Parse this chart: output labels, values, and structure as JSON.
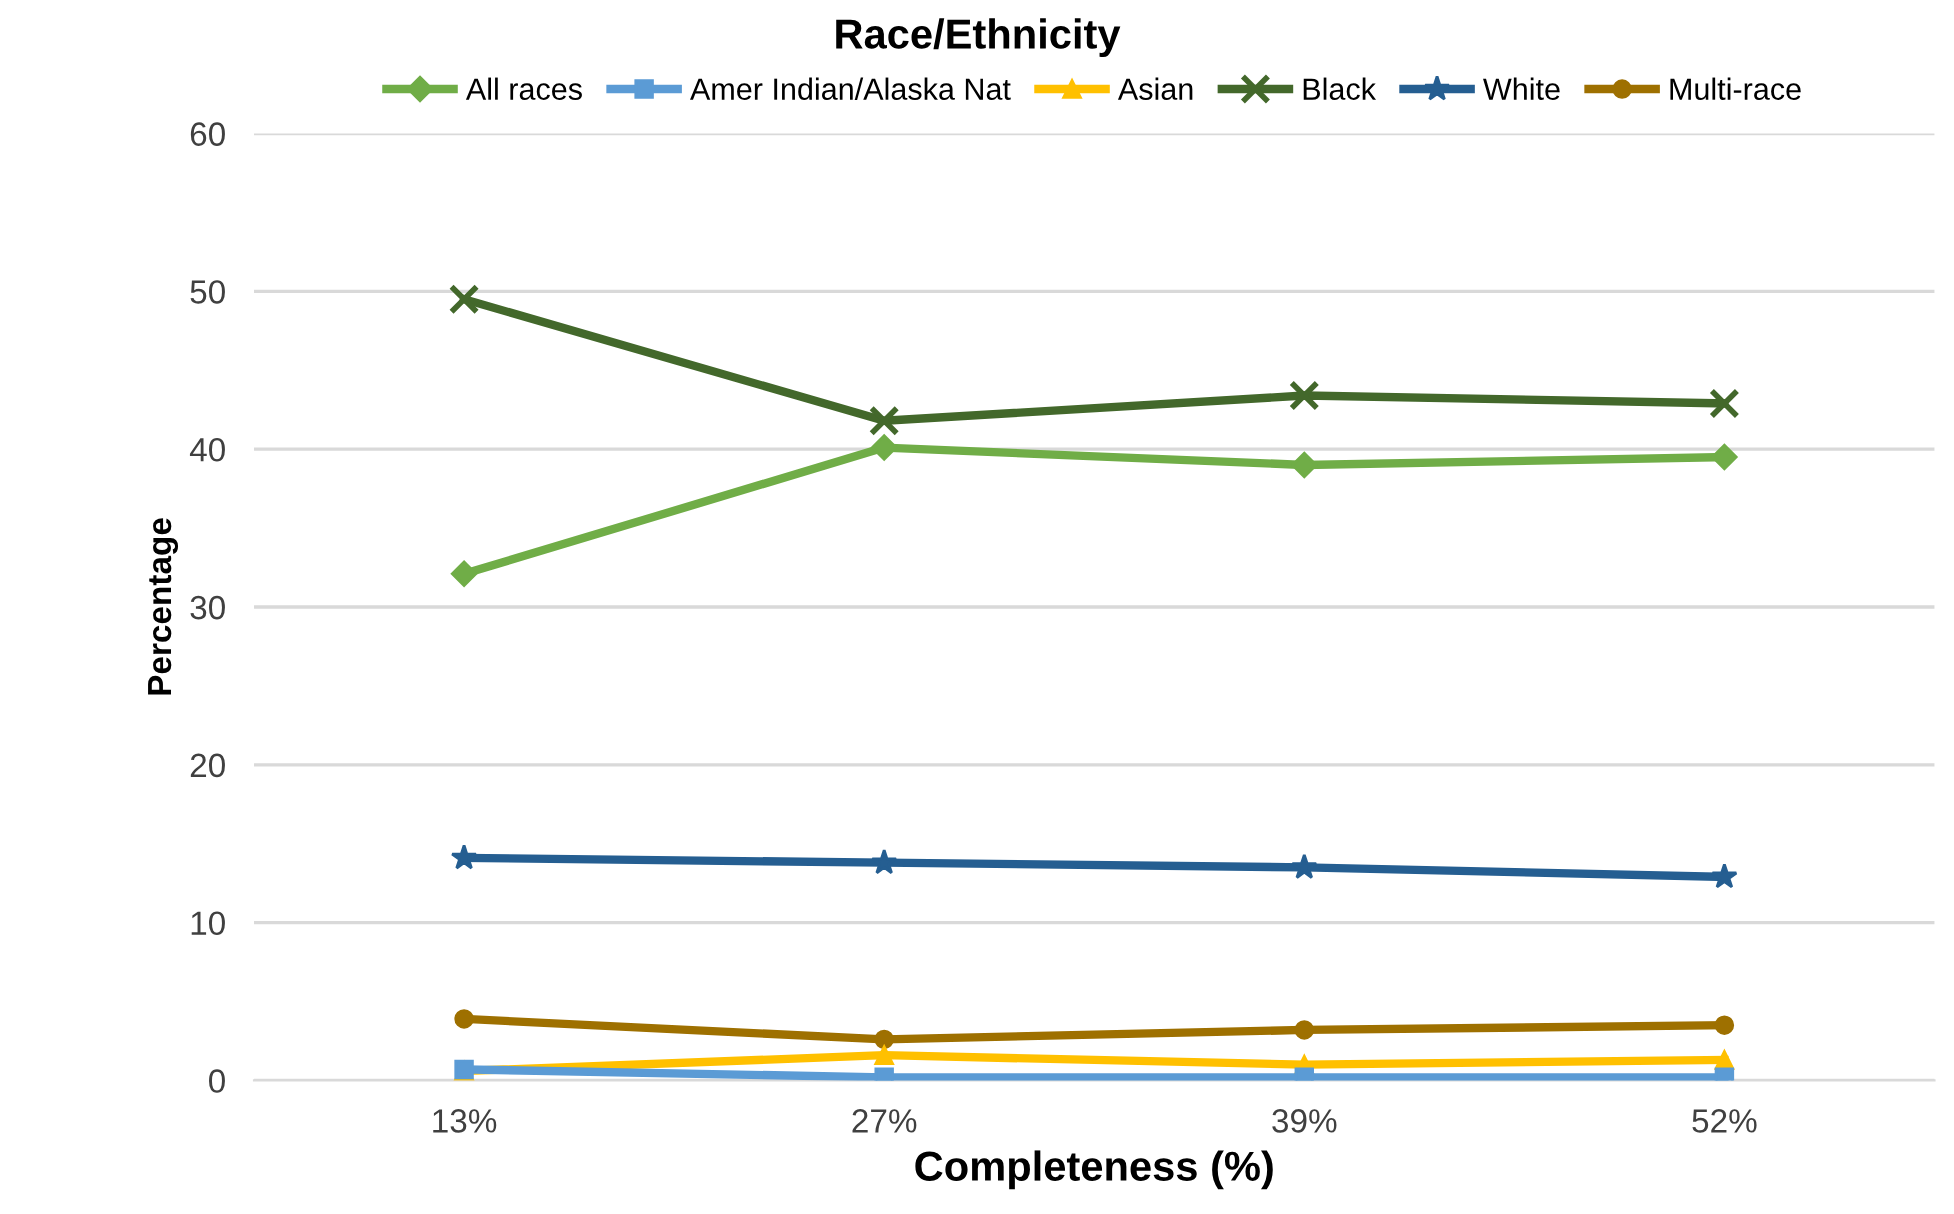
{
  "chart_data": {
    "type": "line",
    "title": "Race/Ethnicity",
    "xlabel": "Completeness (%)",
    "ylabel": "Percentage",
    "categories": [
      "13%",
      "27%",
      "39%",
      "52%"
    ],
    "series": [
      {
        "name": "All races",
        "color": "#70ad47",
        "marker": "diamond",
        "values": [
          32.1,
          40.1,
          39.0,
          39.5
        ]
      },
      {
        "name": "Amer Indian/Alaska Nat",
        "color": "#5b9bd5",
        "marker": "square",
        "values": [
          0.7,
          0.2,
          0.2,
          0.2
        ]
      },
      {
        "name": "Asian",
        "color": "#ffc000",
        "marker": "triangle",
        "values": [
          0.6,
          1.6,
          1.0,
          1.3
        ]
      },
      {
        "name": "Black",
        "color": "#43682b",
        "marker": "cross",
        "values": [
          49.5,
          41.8,
          43.4,
          42.9
        ]
      },
      {
        "name": "White",
        "color": "#255e91",
        "marker": "star",
        "values": [
          14.1,
          13.8,
          13.5,
          12.9
        ]
      },
      {
        "name": "Multi-race",
        "color": "#9e7000",
        "marker": "circle",
        "values": [
          3.9,
          2.6,
          3.2,
          3.5
        ]
      }
    ],
    "ylim": [
      0,
      60
    ],
    "yticks": [
      0,
      10,
      20,
      30,
      40,
      50,
      60
    ],
    "grid": "y",
    "legend": "top",
    "line_style": "solid"
  }
}
